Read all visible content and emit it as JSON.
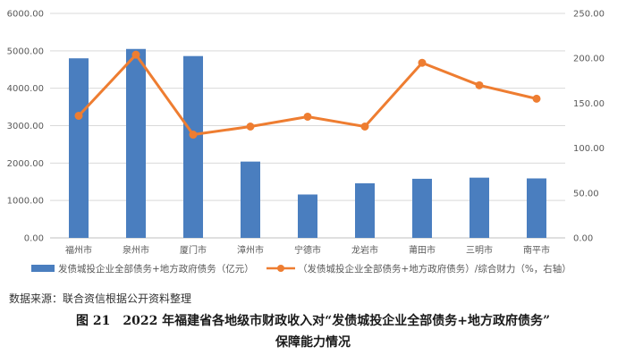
{
  "chart_data": {
    "type": "bar+line",
    "categories": [
      "福州市",
      "泉州市",
      "厦门市",
      "漳州市",
      "宁德市",
      "龙岩市",
      "莆田市",
      "三明市",
      "南平市"
    ],
    "series": [
      {
        "name": "发债城投企业全部债务+地方政府债务（亿元）",
        "type": "bar",
        "axis": "left",
        "color": "#4a7ebf",
        "values": [
          4800,
          5050,
          4860,
          2040,
          1160,
          1460,
          1580,
          1610,
          1590
        ]
      },
      {
        "name": "（发债城投企业全部债务+地方政府债务）/综合财力（%，右轴）",
        "type": "line",
        "axis": "right",
        "color": "#ee7d31",
        "values": [
          136,
          204,
          115,
          124,
          135,
          124,
          195,
          170,
          155
        ]
      }
    ],
    "left_axis": {
      "ylim": [
        0,
        6000
      ],
      "ticks": [
        "0.00",
        "1000.00",
        "2000.00",
        "3000.00",
        "4000.00",
        "5000.00",
        "6000.00"
      ]
    },
    "right_axis": {
      "ylim": [
        0,
        250
      ],
      "ticks": [
        "0.00",
        "50.00",
        "100.00",
        "150.00",
        "200.00",
        "250.00"
      ]
    },
    "grid": true,
    "legend_position": "bottom"
  },
  "source_note": "数据来源：联合资信根据公开资料整理",
  "caption_line1": "图 21　2022 年福建省各地级市财政收入对“发债城投企业全部债务+地方政府债务”",
  "caption_line2": "保障能力情况"
}
